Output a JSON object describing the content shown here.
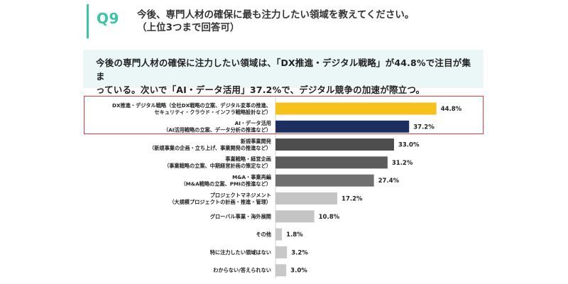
{
  "question": {
    "number": "Q9",
    "line1": "今後、専門人材の確保に最も注力したい領域を教えてください。",
    "line2": "（上位3つまで回答可）"
  },
  "summary": {
    "line1": "今後の専門人材の確保に注力したい領域は、「DX推進・デジタル戦略」が44.8%で注目が集ま",
    "line2": "っている。次いで「AI・データ活用」37.2%で、デジタル競争の加速が際立つ。"
  },
  "chart_data": {
    "type": "bar",
    "orientation": "horizontal",
    "unit": "%",
    "xlim": [
      0,
      50
    ],
    "categories": [
      [
        "DX推進・デジタル戦略（全社DX戦略の立案、デジタル変革の推進、",
        "セキュリティ・クラウド・インフラ戦略設計など）"
      ],
      [
        "AI・データ活用",
        "（AI活用戦略の立案、データ分析の推進など）"
      ],
      [
        "新規事業開発",
        "（新規事業の企画・立ち上げ、事業開発の推進など）"
      ],
      [
        "事業戦略・経営企画",
        "（事業戦略の立案、中期経営計画の策定など）"
      ],
      [
        "M&A・事業再編",
        "（M&A戦略の立案、PMIの推進など）"
      ],
      [
        "プロジェクトマネジメント",
        "（大規模プロジェクトの計画・推進・管理）"
      ],
      [
        "グローバル事業・海外展開"
      ],
      [
        "その他"
      ],
      [
        "特に注力したい領域はない"
      ],
      [
        "わからない/答えられない"
      ]
    ],
    "values": [
      44.8,
      37.2,
      33.0,
      31.2,
      27.4,
      17.2,
      10.8,
      1.8,
      3.2,
      3.0
    ],
    "value_labels": [
      "44.8%",
      "37.2%",
      "33.0%",
      "31.2%",
      "27.4%",
      "17.2%",
      "10.8%",
      "1.8%",
      "3.2%",
      "3.0%"
    ],
    "bar_colors": [
      "#f5c11b",
      "#1c2f5e",
      "#4d4d4d",
      "#5c5c5c",
      "#707070",
      "#c4c4c4",
      "#c4c4c4",
      "#c8c8c8",
      "#c8c8c8",
      "#c8c8c8"
    ],
    "highlighted_categories": [
      0,
      1
    ],
    "highlight_color": "#e03c3c"
  }
}
